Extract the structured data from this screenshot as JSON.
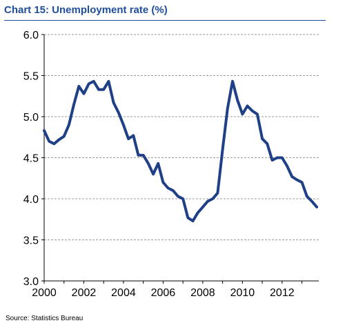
{
  "title": "Chart 15: Unemployment rate (%)",
  "source": "Source: Statistics Bureau",
  "colors": {
    "title": "#1f4e9a",
    "line": "#1f3f86",
    "grid": "#9a9a9a",
    "axis": "#000000"
  },
  "chart_data": {
    "type": "line",
    "title": "Chart 15: Unemployment rate (%)",
    "xlabel": "",
    "ylabel": "",
    "xlim": [
      2000,
      2013.85
    ],
    "ylim": [
      3.0,
      6.0
    ],
    "grid": "horizontal dashed",
    "legend": "none",
    "x_ticks": [
      2000,
      2002,
      2004,
      2006,
      2008,
      2010,
      2012
    ],
    "x_tick_labels": [
      "2000",
      "2002",
      "2004",
      "2006",
      "2008",
      "2010",
      "2012"
    ],
    "y_ticks": [
      3.0,
      3.5,
      4.0,
      4.5,
      5.0,
      5.5,
      6.0
    ],
    "y_tick_labels": [
      "3.0",
      "3.5",
      "4.0",
      "4.5",
      "5.0",
      "5.5",
      "6.0"
    ],
    "series": [
      {
        "x": [
          2000.0,
          2000.25,
          2000.5,
          2000.75,
          2001.0,
          2001.25,
          2001.5,
          2001.75,
          2002.0,
          2002.25,
          2002.5,
          2002.75,
          2003.0,
          2003.25,
          2003.5,
          2003.75,
          2004.0,
          2004.25,
          2004.5,
          2004.75,
          2005.0,
          2005.25,
          2005.5,
          2005.75,
          2006.0,
          2006.25,
          2006.5,
          2006.75,
          2007.0,
          2007.25,
          2007.5,
          2007.75,
          2008.0,
          2008.25,
          2008.5,
          2008.75,
          2009.0,
          2009.25,
          2009.5,
          2009.75,
          2010.0,
          2010.25,
          2010.5,
          2010.75,
          2011.0,
          2011.25,
          2011.5,
          2011.75,
          2012.0,
          2012.25,
          2012.5,
          2012.75,
          2013.0,
          2013.25,
          2013.5,
          2013.75
        ],
        "values": [
          4.83,
          4.7,
          4.67,
          4.72,
          4.76,
          4.9,
          5.15,
          5.37,
          5.28,
          5.4,
          5.43,
          5.33,
          5.33,
          5.43,
          5.17,
          5.05,
          4.9,
          4.73,
          4.77,
          4.53,
          4.53,
          4.43,
          4.3,
          4.43,
          4.2,
          4.13,
          4.1,
          4.03,
          4.0,
          3.77,
          3.73,
          3.83,
          3.9,
          3.97,
          4.0,
          4.07,
          4.6,
          5.1,
          5.43,
          5.2,
          5.03,
          5.13,
          5.07,
          5.03,
          4.73,
          4.67,
          4.47,
          4.5,
          4.5,
          4.4,
          4.27,
          4.23,
          4.2,
          4.03,
          3.97,
          3.9
        ]
      }
    ]
  }
}
